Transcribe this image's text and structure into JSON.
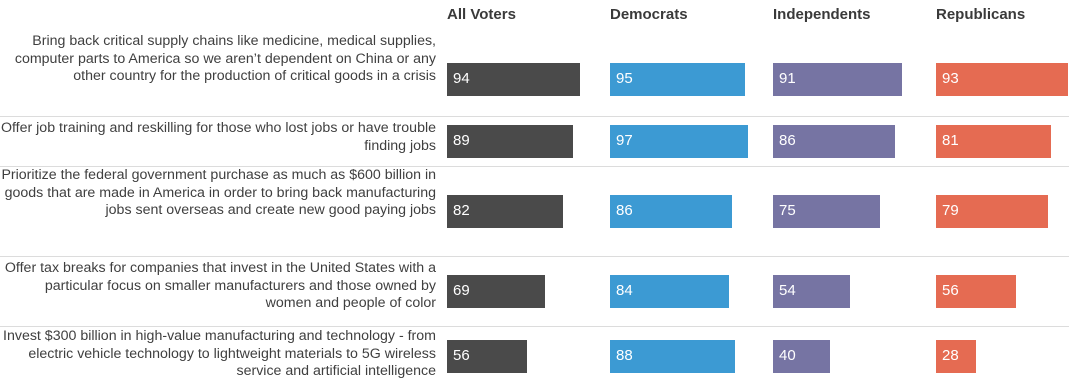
{
  "chart_data": {
    "type": "bar",
    "columns": [
      "All Voters",
      "Democrats",
      "Independents",
      "Republicans"
    ],
    "categories": [
      "Bring back critical supply chains like medicine, medical supplies, computer parts to America so we aren’t dependent on China or any other country for the production of critical goods in a crisis",
      "Offer job training and reskilling for those who lost jobs or have trouble finding jobs",
      "Prioritize the federal government purchase as much as $600 billion in goods that are made in America in order to bring back manufacturing jobs sent overseas and create new good paying jobs",
      "Offer tax breaks for companies that invest in the United States with a particular focus on smaller manufacturers and those owned by women and people of color",
      "Invest $300 billion in high-value manufacturing and technology - from electric vehicle technology to lightweight materials to 5G wireless service and artificial intelligence"
    ],
    "series": [
      {
        "name": "All Voters",
        "color": "#4a4a4a",
        "values": [
          94,
          89,
          82,
          69,
          56
        ]
      },
      {
        "name": "Democrats",
        "color": "#3c9ad3",
        "values": [
          95,
          97,
          86,
          84,
          88
        ]
      },
      {
        "name": "Independents",
        "color": "#7674a3",
        "values": [
          91,
          86,
          75,
          54,
          40
        ]
      },
      {
        "name": "Republicans",
        "color": "#e56b52",
        "values": [
          93,
          81,
          79,
          56,
          28
        ]
      }
    ],
    "ylim": [
      0,
      100
    ]
  }
}
